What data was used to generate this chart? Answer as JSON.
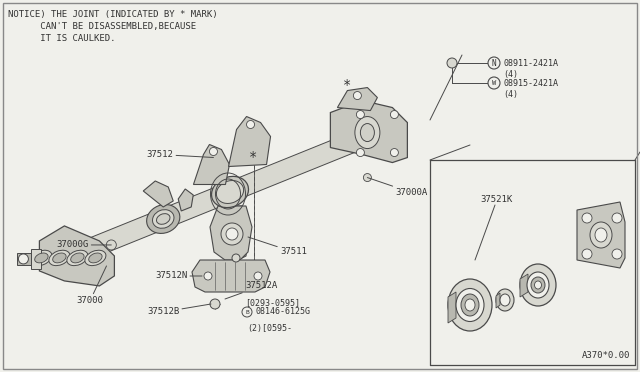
{
  "bg_color": "#f0f0eb",
  "line_color": "#4a4a4a",
  "text_color": "#333333",
  "notice_lines": [
    "NOTICE) THE JOINT (INDICATED BY * MARK)",
    "      CAN'T BE DISASSEMBLED,BECAUSE",
    "      IT IS CAULKED."
  ],
  "watermark": "A370*0.00",
  "part_color": "#c8c8c0",
  "part_color2": "#d8d8d0",
  "part_color3": "#b8b8b0",
  "shaft_color": "#d0d0c8"
}
